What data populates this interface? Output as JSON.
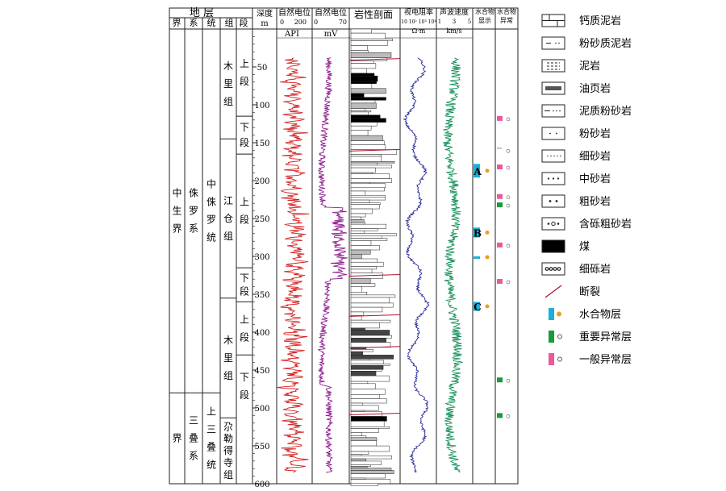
{
  "header": {
    "strata": "地 层",
    "cols": {
      "jie": "界",
      "xi": "系",
      "tong": "统",
      "zu": "组",
      "duan": "段"
    },
    "depth": "深度",
    "depth_unit": "m",
    "sp_gamma": "自然电位",
    "sp_gamma_unit": "API",
    "sp_gamma_range": [
      "0",
      "200"
    ],
    "sp": "自然电位",
    "sp_unit": "mV",
    "sp_range": [
      "0",
      "70"
    ],
    "lith": "岩性剖面",
    "res": "视电阻率",
    "res_unit": "Ω·m",
    "res_ticks": "10 10² 10³ 10⁴",
    "vel": "声波速度",
    "vel_unit": "km/s",
    "vel_ticks": [
      "1",
      "3",
      "5"
    ],
    "hyd": "水合物显示",
    "anom": "水合物异常"
  },
  "strat": {
    "jie": [
      {
        "text": "中生界",
        "from": 0,
        "to": 480
      },
      {
        "text": "界",
        "from": 480,
        "to": 600
      }
    ],
    "xi": [
      {
        "text": "侏罗系",
        "from": 0,
        "to": 480
      },
      {
        "text": "三叠系",
        "from": 480,
        "to": 600
      }
    ],
    "tong": [
      {
        "text": "中侏罗统",
        "from": 0,
        "to": 480
      },
      {
        "text": "上三叠统",
        "from": 480,
        "to": 600
      }
    ],
    "zu": [
      {
        "text": "木里组",
        "from": 0,
        "to": 145
      },
      {
        "text": "江仓组",
        "from": 145,
        "to": 355
      },
      {
        "text": "木里组",
        "from": 355,
        "to": 513
      },
      {
        "text": "尕勒得寺组",
        "from": 513,
        "to": 600
      }
    ],
    "duan": [
      {
        "text": "上段",
        "from": 0,
        "to": 115
      },
      {
        "text": "下段",
        "from": 115,
        "to": 165
      },
      {
        "text": "上段",
        "from": 165,
        "to": 315
      },
      {
        "text": "下段",
        "from": 315,
        "to": 360
      },
      {
        "text": "上段",
        "from": 360,
        "to": 430
      },
      {
        "text": "下段",
        "from": 430,
        "to": 513
      }
    ]
  },
  "chart_data": {
    "type": "well-log",
    "depth_range": [
      0,
      600
    ],
    "depth_ticks": [
      50,
      100,
      150,
      200,
      250,
      300,
      350,
      400,
      450,
      500,
      550,
      600
    ],
    "tracks": [
      "自然电位 API",
      "自然电位 mV",
      "岩性剖面",
      "视电阻率 Ω·m",
      "声波速度 km/s"
    ],
    "hydrate_layers": [
      {
        "label": "A",
        "from": 178,
        "to": 196
      },
      {
        "label": "B",
        "from": 262,
        "to": 275
      },
      {
        "label": "",
        "from": 300,
        "to": 302
      },
      {
        "label": "C",
        "from": 360,
        "to": 372
      }
    ],
    "anomalies": [
      {
        "depth": 118,
        "type": "general"
      },
      {
        "depth": 160,
        "type": "thin"
      },
      {
        "depth": 182,
        "type": "general"
      },
      {
        "depth": 221,
        "type": "general"
      },
      {
        "depth": 232,
        "type": "major"
      },
      {
        "depth": 285,
        "type": "general"
      },
      {
        "depth": 333,
        "type": "general"
      },
      {
        "depth": 463,
        "type": "major"
      },
      {
        "depth": 510,
        "type": "major"
      }
    ],
    "faults": [
      40,
      160,
      325,
      378,
      420,
      508
    ]
  },
  "legend": [
    {
      "label": "钙质泥岩",
      "pattern": "calc"
    },
    {
      "label": "粉砂质泥岩",
      "pattern": "siltmud"
    },
    {
      "label": "泥岩",
      "pattern": "mud"
    },
    {
      "label": "油页岩",
      "pattern": "oilshale"
    },
    {
      "label": "泥质粉砂岩",
      "pattern": "mudsilt"
    },
    {
      "label": "粉砂岩",
      "pattern": "silt"
    },
    {
      "label": "细砂岩",
      "pattern": "fine"
    },
    {
      "label": "中砂岩",
      "pattern": "medium"
    },
    {
      "label": "粗砂岩",
      "pattern": "coarse"
    },
    {
      "label": "含砾粗砂岩",
      "pattern": "pebbly"
    },
    {
      "label": "煤",
      "pattern": "coal"
    },
    {
      "label": "细砾岩",
      "pattern": "conglomerate"
    },
    {
      "label": "断裂",
      "pattern": "fault"
    },
    {
      "label": "水合物层",
      "pattern": "hydrate"
    },
    {
      "label": "重要异常层",
      "pattern": "major"
    },
    {
      "label": "一般异常层",
      "pattern": "general"
    }
  ],
  "colors": {
    "gamma": "#d42020",
    "sp": "#8c1a8c",
    "res": "#2a2a9a",
    "vel": "#15905a",
    "hydrate": "#1ab0d8",
    "major": "#1a9a3a",
    "general": "#ea5a9a",
    "fault": "#b01030"
  }
}
